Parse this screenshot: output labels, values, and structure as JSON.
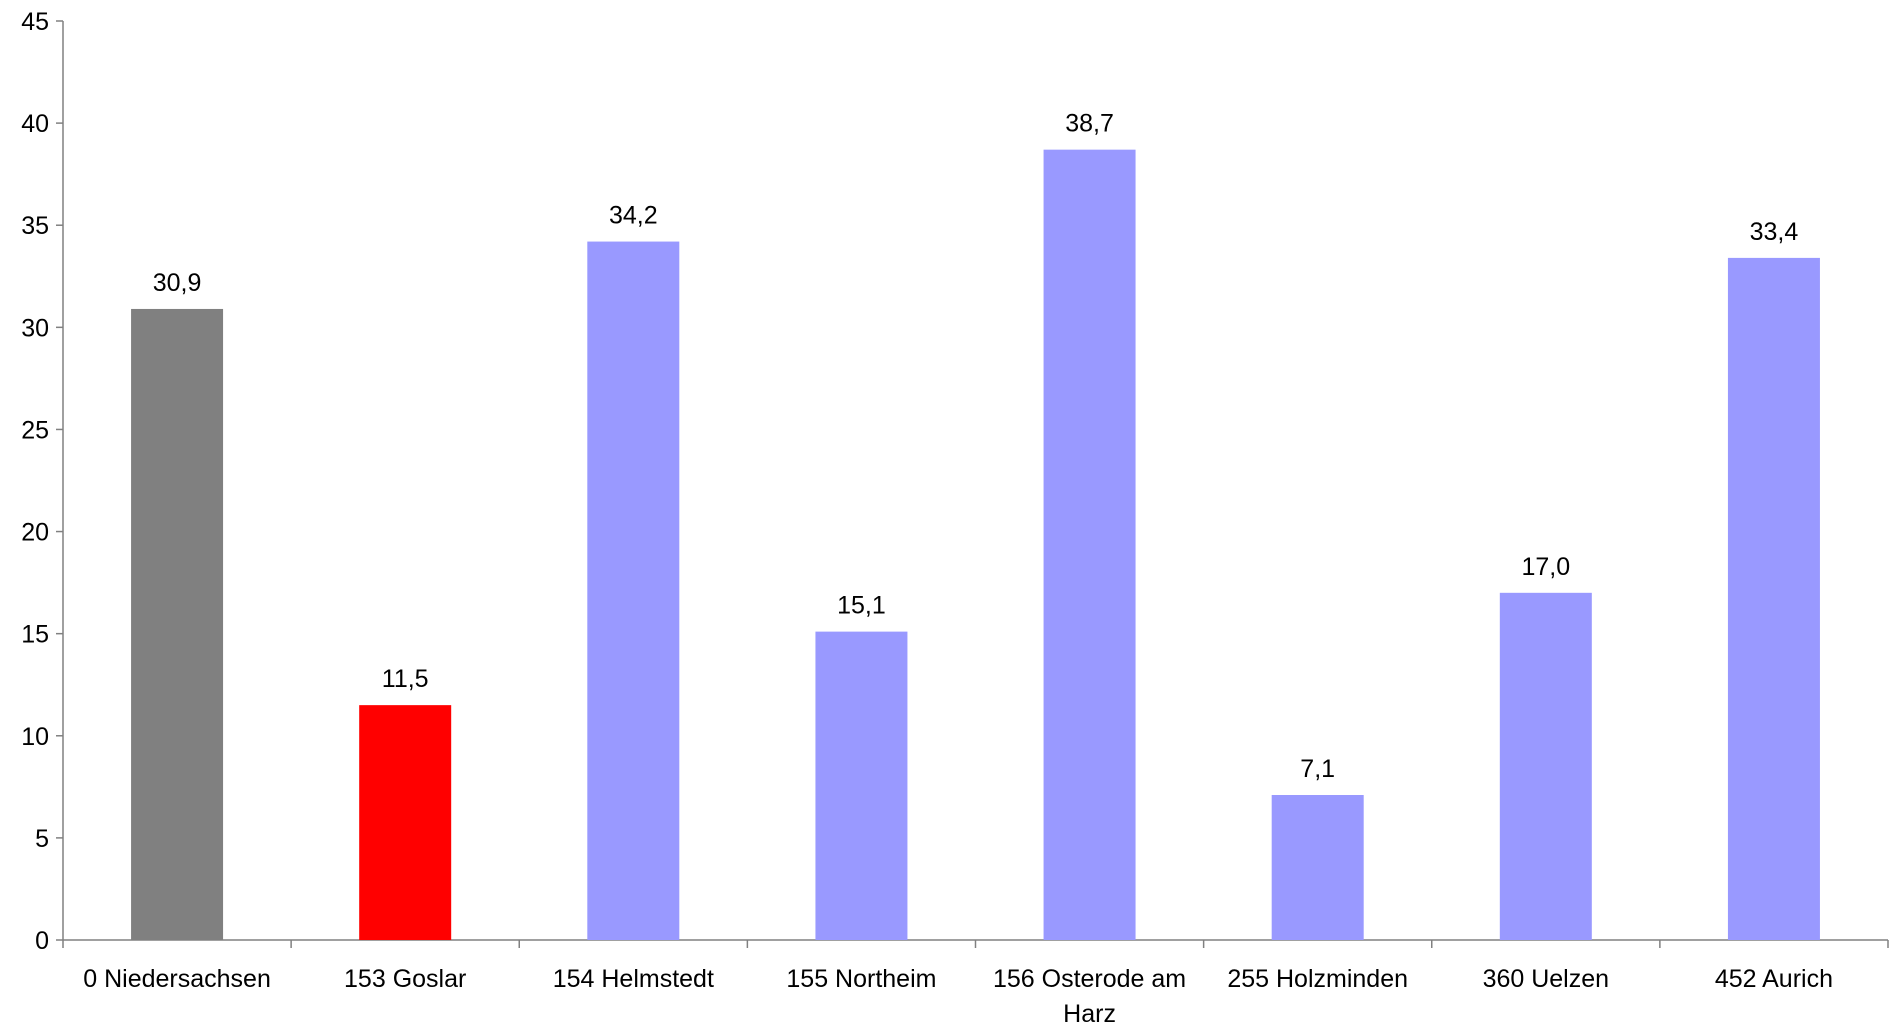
{
  "chart_data": {
    "type": "bar",
    "title": "",
    "xlabel": "",
    "ylabel": "",
    "ylim": [
      0,
      45
    ],
    "ytick_step": 5,
    "grid": false,
    "legend": "none",
    "categories": [
      "0 Niedersachsen",
      "153 Goslar",
      "154 Helmstedt",
      "155 Northeim",
      "156 Osterode am Harz",
      "255 Holzminden",
      "360 Uelzen",
      "452 Aurich"
    ],
    "values": [
      30.9,
      11.5,
      34.2,
      15.1,
      38.7,
      7.1,
      17.0,
      33.4
    ],
    "value_labels": [
      "30,9",
      "11,5",
      "34,2",
      "15,1",
      "38,7",
      "7,1",
      "17,0",
      "33,4"
    ],
    "colors": [
      "#808080",
      "#ff0000",
      "#9999ff",
      "#9999ff",
      "#9999ff",
      "#9999ff",
      "#9999ff",
      "#9999ff"
    ]
  }
}
